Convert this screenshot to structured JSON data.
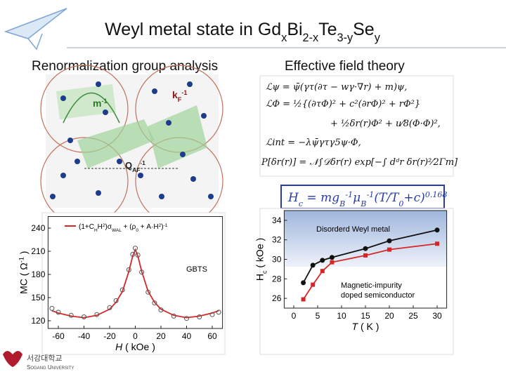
{
  "slide": {
    "title": [
      {
        "text": "Weyl metal state in Gd"
      },
      {
        "text": "x",
        "sub": true
      },
      {
        "text": "Bi"
      },
      {
        "text": "2-x",
        "sub": true
      },
      {
        "text": "Te"
      },
      {
        "text": "3-y",
        "sub": true
      },
      {
        "text": "Se"
      },
      {
        "text": "y",
        "sub": true
      }
    ],
    "left_heading": "Renormalization group analysis",
    "right_heading": "Effective field theory",
    "footer": {
      "korean": "서강대학교",
      "english": "Sogang University"
    }
  },
  "diagram": {
    "labels": [
      [
        {
          "text": "m"
        },
        {
          "text": "-1",
          "sup": true
        }
      ],
      [
        {
          "text": "k"
        },
        {
          "text": "F",
          "sub": true
        },
        {
          "text": "-1",
          "sup": true
        }
      ],
      [
        {
          "text": "Q"
        },
        {
          "text": "AF",
          "sub": true
        },
        {
          "text": "-1",
          "sup": true
        }
      ]
    ]
  },
  "equations": {
    "lines": [
      "ℒψ = ψ̄(γτ(∂τ − wγ·∇r) + m)ψ,",
      "ℒΦ = ½{(∂τΦ)² + c²(∂rΦ)² + rΦ²}",
      "+ ½δr(r)Φ² + u⁄8(Φ·Φ)²,",
      "ℒint = −λψ̄γτγ5ψ·Φ,",
      "P[δr(r)] = 𝒩∫𝒟δr(r) exp[−∫ dᵈr δr(r)²⁄2Γm]"
    ],
    "box": [
      {
        "text": "H"
      },
      {
        "text": "c",
        "sub": true
      },
      {
        "text": " = mg"
      },
      {
        "text": "B",
        "sub": true
      },
      {
        "text": "-1",
        "sup": true
      },
      {
        "text": "μ"
      },
      {
        "text": "B",
        "sub": true
      },
      {
        "text": "-1",
        "sup": true
      },
      {
        "text": "(T/T"
      },
      {
        "text": "0",
        "sub": true
      },
      {
        "text": "+c)"
      },
      {
        "text": "0.168",
        "sup": true
      }
    ]
  },
  "chart_data": [
    {
      "type": "line",
      "x_label": [
        {
          "text": "H"
        },
        {
          "text": " ( kOe )"
        }
      ],
      "y_label": [
        {
          "text": "MC ( Ω"
        },
        {
          "text": "-1",
          "sup": true
        },
        {
          "text": " )"
        }
      ],
      "annotations": [
        "GBTS"
      ],
      "x": [
        -65,
        -60,
        -50,
        -40,
        -30,
        -20,
        -15,
        -10,
        -5,
        -2,
        0,
        2,
        5,
        10,
        15,
        20,
        30,
        40,
        50,
        60,
        65
      ],
      "series": [
        {
          "name": [
            {
              "text": "(1+C"
            },
            {
              "text": "H",
              "sub": true
            },
            {
              "text": "H"
            },
            {
              "text": "2",
              "sup": true
            },
            {
              "text": ")σ"
            },
            {
              "text": "WAL",
              "sub": true
            },
            {
              "text": " + (ρ"
            },
            {
              "text": "0",
              "sub": true
            },
            {
              "text": " + A·H"
            },
            {
              "text": "2",
              "sup": true
            },
            {
              "text": ")"
            },
            {
              "text": "-1",
              "sup": true
            }
          ],
          "color": "#d62728",
          "style": "line",
          "values": [
            133,
            130,
            126,
            124,
            127,
            135,
            144,
            158,
            184,
            204,
            212,
            204,
            184,
            158,
            144,
            135,
            127,
            124,
            126,
            130,
            133
          ]
        },
        {
          "color": "#555555",
          "style": "markers",
          "marker": "circle",
          "values": [
            136,
            131,
            127,
            125,
            128,
            137,
            146,
            160,
            186,
            206,
            214,
            205,
            183,
            157,
            143,
            134,
            126,
            123,
            125,
            128,
            131
          ]
        }
      ],
      "xlim": [
        -68,
        68
      ],
      "ylim": [
        110,
        255
      ],
      "xticks": [
        -60,
        -40,
        -20,
        0,
        20,
        40,
        60
      ],
      "yticks": [
        120,
        150,
        180,
        210,
        240
      ]
    },
    {
      "type": "line",
      "x_label": [
        {
          "text": "T"
        },
        {
          "text": " ( K )"
        }
      ],
      "y_label": [
        {
          "text": "H"
        },
        {
          "text": "c",
          "sub": true
        },
        {
          "text": " ( kOe )"
        }
      ],
      "annotations": [
        "Disorderd Weyl metal",
        "Magnetic-impurity",
        "doped semiconductor"
      ],
      "x": [
        2,
        4,
        6,
        8,
        15,
        20,
        30
      ],
      "series": [
        {
          "color": "#111111",
          "style": "line+markers",
          "marker": "circle",
          "values": [
            27.6,
            29.4,
            29.9,
            30.2,
            31.1,
            31.9,
            33.0
          ]
        },
        {
          "color": "#d62728",
          "style": "line+markers",
          "marker": "square",
          "values": [
            25.9,
            27.4,
            28.8,
            29.7,
            30.4,
            31.0,
            31.6
          ]
        }
      ],
      "xlim": [
        -2,
        32
      ],
      "ylim": [
        25,
        35
      ],
      "xticks": [
        0,
        5,
        10,
        15,
        20,
        25,
        30
      ],
      "yticks": [
        26,
        28,
        30,
        32,
        34
      ]
    }
  ]
}
